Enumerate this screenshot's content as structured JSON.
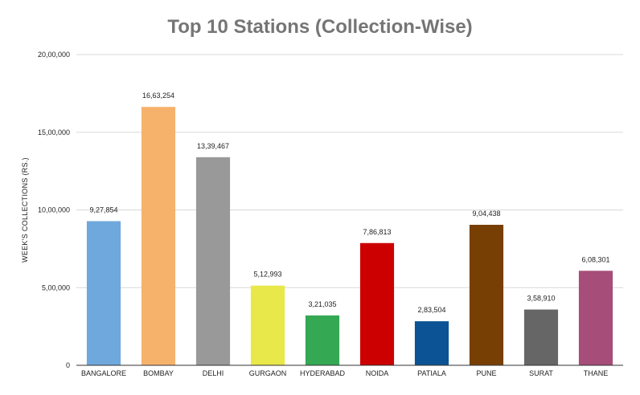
{
  "chart_data": {
    "type": "bar",
    "title": "Top 10 Stations (Collection-Wise)",
    "xlabel": "",
    "ylabel": "WEEK'S COLLECTIONS (RS.)",
    "ylim": [
      0,
      2000000
    ],
    "y_ticks": [
      0,
      500000,
      1000000,
      1500000,
      2000000
    ],
    "y_tick_labels": [
      "0",
      "5,00,000",
      "10,00,000",
      "15,00,000",
      "20,00,000"
    ],
    "grid": true,
    "legend": "none",
    "categories": [
      "BANGALORE",
      "BOMBAY",
      "DELHI",
      "GURGAON",
      "HYDERABAD",
      "NOIDA",
      "PATIALA",
      "PUNE",
      "SURAT",
      "THANE"
    ],
    "values": [
      927854,
      1663254,
      1339467,
      512993,
      321035,
      786813,
      283504,
      904438,
      358910,
      608301
    ],
    "value_labels": [
      "9,27,854",
      "16,63,254",
      "13,39,467",
      "5,12,993",
      "3,21,035",
      "7,86,813",
      "2,83,504",
      "9,04,438",
      "3,58,910",
      "6,08,301"
    ],
    "colors": [
      "#6fa8dc",
      "#f6b26b",
      "#999999",
      "#e9e84a",
      "#34a853",
      "#cc0000",
      "#0b5394",
      "#783f04",
      "#666666",
      "#a64d79"
    ]
  }
}
